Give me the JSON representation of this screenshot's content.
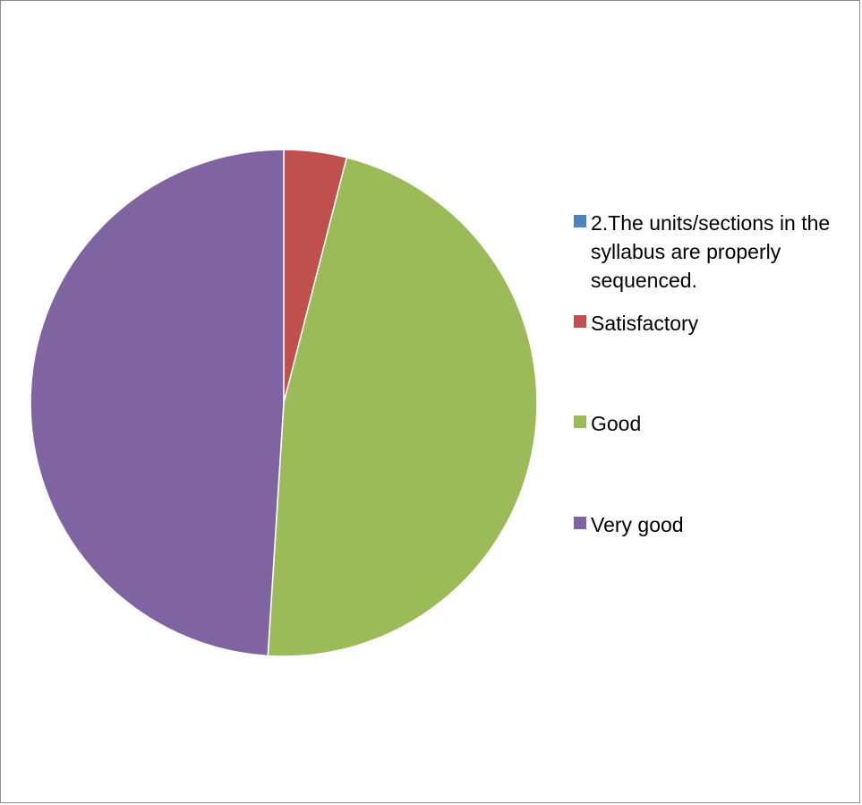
{
  "chart_data": {
    "type": "pie",
    "title": "",
    "slices": [
      {
        "label": "2.The units/sections in the syllabus  are properly sequenced.",
        "value": 0,
        "color": "#4F81BD"
      },
      {
        "label": "Satisfactory",
        "value": 4,
        "color": "#C0504D"
      },
      {
        "label": "Good",
        "value": 47,
        "color": "#9BBB59"
      },
      {
        "label": "Very good",
        "value": 49,
        "color": "#8064A2"
      }
    ],
    "legend": {
      "position": "right"
    }
  }
}
